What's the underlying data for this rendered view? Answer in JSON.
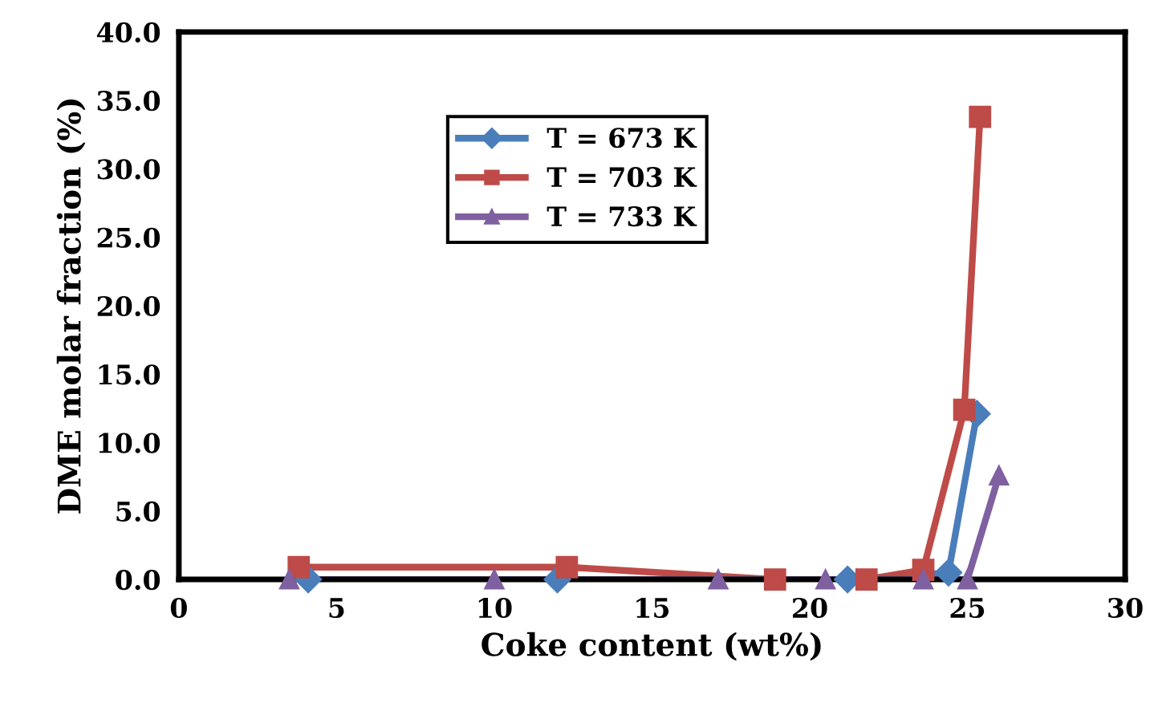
{
  "chart_data": {
    "type": "line",
    "xlabel": "Coke content (wt%)",
    "ylabel": "DME molar fraction (%)",
    "xlim": [
      0,
      30
    ],
    "xticks": [
      0,
      5,
      10,
      15,
      20,
      25,
      30
    ],
    "ylim": [
      0,
      40
    ],
    "yticks": [
      {
        "value": 0,
        "label": "0.0"
      },
      {
        "value": 5,
        "label": "5.0"
      },
      {
        "value": 10,
        "label": "10.0"
      },
      {
        "value": 15,
        "label": "15.0"
      },
      {
        "value": 20,
        "label": "20.0"
      },
      {
        "value": 25,
        "label": "25.0"
      },
      {
        "value": 30,
        "label": "30.0"
      },
      {
        "value": 35,
        "label": "35.0"
      },
      {
        "value": 40,
        "label": "40.0"
      }
    ],
    "grid": false,
    "legend": "top center",
    "series": [
      {
        "name": "T = 673 K",
        "color": "#4a7ebb",
        "marker": "diamond",
        "x": [
          4.1,
          12.0,
          21.2,
          24.4,
          25.3
        ],
        "values": [
          0,
          0,
          0,
          0.5,
          12.1
        ]
      },
      {
        "name": "T = 703 K",
        "color": "#be4b48",
        "marker": "square",
        "x": [
          3.8,
          12.3,
          18.9,
          21.8,
          23.6,
          24.9,
          25.4
        ],
        "values": [
          0.9,
          0.9,
          0,
          0,
          0.7,
          12.4,
          33.8
        ]
      },
      {
        "name": "T = 733 K",
        "color": "#7f60a0",
        "marker": "triangle",
        "x": [
          3.5,
          10.0,
          17.1,
          20.5,
          23.6,
          25.0,
          26.0
        ],
        "values": [
          0,
          0,
          0,
          0,
          0,
          0,
          7.6
        ]
      }
    ]
  }
}
